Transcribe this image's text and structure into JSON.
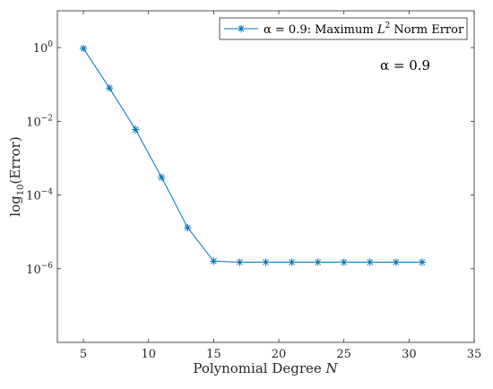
{
  "chart_data": {
    "type": "line",
    "title": "",
    "xlabel": "Polynomial Degree N",
    "ylabel": "log10(Error)",
    "xlim": [
      3,
      35
    ],
    "ylim": [
      1e-08,
      10
    ],
    "y_scale": "log",
    "grid": false,
    "legend_position": "top-right",
    "x_ticks": [
      5,
      10,
      15,
      20,
      25,
      30,
      35
    ],
    "y_tick_exponents": [
      -6,
      -4,
      -2,
      0
    ],
    "series": [
      {
        "name": "α = 0.9: Maximum L² Norm Error",
        "color": "#0072BD",
        "marker": "asterisk",
        "x": [
          5,
          7,
          9,
          11,
          13,
          15,
          17,
          19,
          21,
          23,
          25,
          27,
          29,
          31
        ],
        "y": [
          0.95,
          0.08,
          0.006,
          0.0003,
          1.3e-05,
          1.6e-06,
          1.5e-06,
          1.5e-06,
          1.5e-06,
          1.5e-06,
          1.5e-06,
          1.5e-06,
          1.5e-06,
          1.5e-06
        ]
      }
    ],
    "annotation": "α = 0.9"
  }
}
